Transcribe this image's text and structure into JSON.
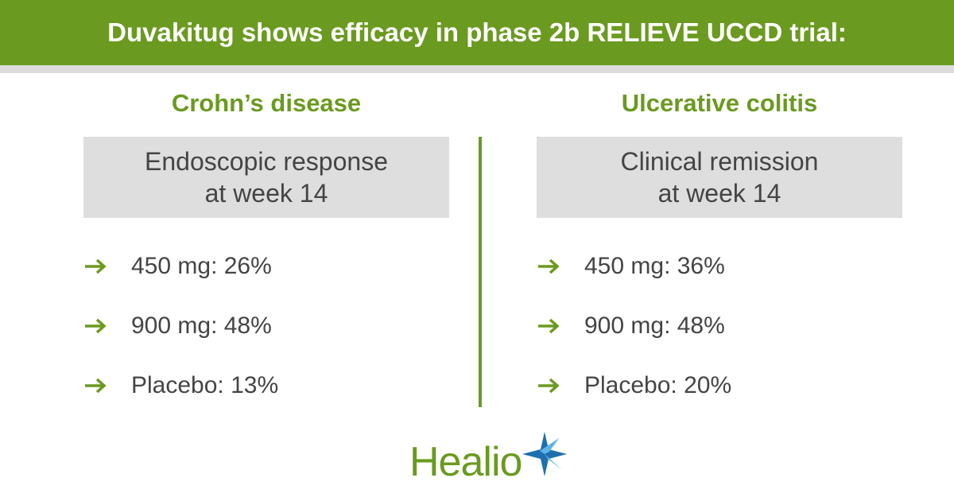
{
  "header": {
    "title": "Duvakitug shows efficacy in phase 2b RELIEVE UCCD trial:"
  },
  "columns": [
    {
      "heading": "Crohn’s disease",
      "box_lines": [
        "Endoscopic response",
        "at week 14"
      ],
      "items": [
        "450 mg: 26%",
        "900 mg: 48%",
        "Placebo: 13%"
      ]
    },
    {
      "heading": "Ulcerative colitis",
      "box_lines": [
        "Clinical remission",
        "at week 14"
      ],
      "items": [
        "450 mg: 36%",
        "900 mg: 48%",
        "Placebo: 20%"
      ]
    }
  ],
  "logo": {
    "text": "Healio"
  }
}
